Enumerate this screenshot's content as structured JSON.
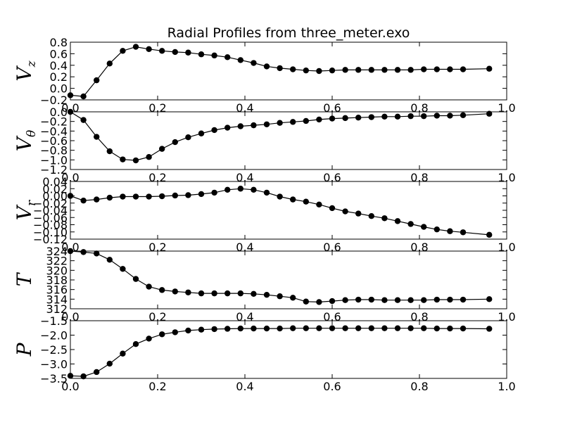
{
  "chart_data": {
    "type": "line",
    "title": "Radial Profiles from three_meter.exo",
    "x": [
      0.0,
      0.03,
      0.06,
      0.09,
      0.12,
      0.15,
      0.18,
      0.21,
      0.24,
      0.27,
      0.3,
      0.33,
      0.36,
      0.39,
      0.42,
      0.45,
      0.48,
      0.51,
      0.54,
      0.57,
      0.6,
      0.63,
      0.66,
      0.69,
      0.72,
      0.75,
      0.78,
      0.81,
      0.84,
      0.87,
      0.9,
      0.96
    ],
    "xlim": [
      0.0,
      1.0
    ],
    "xticks": [
      "0.0",
      "0.2",
      "0.4",
      "0.6",
      "0.8",
      "1.0"
    ],
    "line_color": "#000000",
    "panels": [
      {
        "ylabel_main": "V",
        "ylabel_sub": "z",
        "ylim": [
          -0.2,
          0.8
        ],
        "yticks": [
          "−0.2",
          "0.0",
          "0.2",
          "0.4",
          "0.6",
          "0.8"
        ],
        "values": [
          -0.12,
          -0.14,
          0.14,
          0.43,
          0.65,
          0.72,
          0.68,
          0.65,
          0.63,
          0.62,
          0.59,
          0.57,
          0.54,
          0.49,
          0.44,
          0.38,
          0.35,
          0.33,
          0.31,
          0.3,
          0.31,
          0.32,
          0.32,
          0.32,
          0.32,
          0.32,
          0.32,
          0.33,
          0.33,
          0.33,
          0.33,
          0.34
        ]
      },
      {
        "ylabel_main": "V",
        "ylabel_sub": "θ",
        "ylim": [
          -1.2,
          0.0
        ],
        "yticks": [
          "−1.2",
          "−1.0",
          "−0.8",
          "−0.6",
          "−0.4",
          "−0.2",
          "0.0"
        ],
        "values": [
          0.0,
          -0.17,
          -0.52,
          -0.82,
          -0.99,
          -1.01,
          -0.94,
          -0.77,
          -0.63,
          -0.53,
          -0.45,
          -0.38,
          -0.33,
          -0.3,
          -0.28,
          -0.26,
          -0.23,
          -0.21,
          -0.19,
          -0.16,
          -0.14,
          -0.13,
          -0.12,
          -0.11,
          -0.1,
          -0.1,
          -0.09,
          -0.09,
          -0.08,
          -0.08,
          -0.07,
          -0.04
        ]
      },
      {
        "ylabel_main": "V",
        "ylabel_sub": "r",
        "ylim": [
          -0.12,
          0.04
        ],
        "yticks": [
          "−0.12",
          "−0.10",
          "−0.08",
          "−0.06",
          "−0.04",
          "−0.02",
          "0.00",
          "0.02",
          "0.04"
        ],
        "values": [
          0.0,
          -0.013,
          -0.01,
          -0.005,
          -0.002,
          -0.002,
          -0.002,
          -0.001,
          0.001,
          0.002,
          0.005,
          0.009,
          0.017,
          0.02,
          0.017,
          0.009,
          -0.002,
          -0.01,
          -0.016,
          -0.024,
          -0.034,
          -0.043,
          -0.049,
          -0.056,
          -0.062,
          -0.07,
          -0.078,
          -0.086,
          -0.093,
          -0.098,
          -0.101,
          -0.108
        ]
      },
      {
        "ylabel_main": "T",
        "ylabel_sub": "",
        "ylim": [
          312,
          324
        ],
        "yticks": [
          "312",
          "314",
          "316",
          "318",
          "320",
          "322",
          "324"
        ],
        "values": [
          324.0,
          323.8,
          323.5,
          322.2,
          320.3,
          318.2,
          316.6,
          315.9,
          315.6,
          315.4,
          315.2,
          315.2,
          315.2,
          315.2,
          315.1,
          314.9,
          314.6,
          314.3,
          313.5,
          313.4,
          313.6,
          313.8,
          313.9,
          313.9,
          313.8,
          313.8,
          313.8,
          313.8,
          313.9,
          313.9,
          313.9,
          314.0
        ]
      },
      {
        "ylabel_main": "P",
        "ylabel_sub": "",
        "ylim": [
          -3.5,
          -1.5
        ],
        "yticks": [
          "−3.5",
          "−3.0",
          "−2.5",
          "−2.0",
          "−1.5"
        ],
        "values": [
          -3.41,
          -3.43,
          -3.28,
          -2.99,
          -2.64,
          -2.31,
          -2.12,
          -1.97,
          -1.9,
          -1.84,
          -1.81,
          -1.79,
          -1.78,
          -1.77,
          -1.77,
          -1.77,
          -1.77,
          -1.76,
          -1.76,
          -1.76,
          -1.76,
          -1.76,
          -1.76,
          -1.76,
          -1.76,
          -1.76,
          -1.76,
          -1.76,
          -1.77,
          -1.77,
          -1.77,
          -1.78
        ]
      }
    ]
  }
}
